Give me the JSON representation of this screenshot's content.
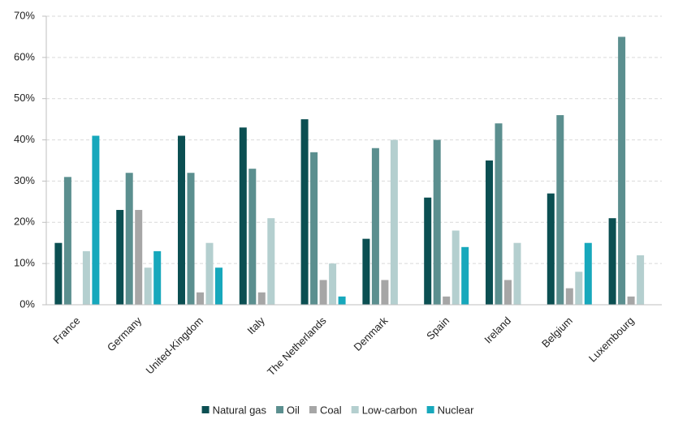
{
  "chart_data": {
    "type": "bar",
    "categories": [
      "France",
      "Germany",
      "United-Kingdom",
      "Italy",
      "The Netherlands",
      "Denmark",
      "Spain",
      "Ireland",
      "Belgium",
      "Luxembourg"
    ],
    "series": [
      {
        "name": "Natural gas",
        "color": "#0b4f52",
        "values": [
          15,
          23,
          41,
          43,
          45,
          16,
          26,
          35,
          27,
          21
        ]
      },
      {
        "name": "Oil",
        "color": "#5b8f8f",
        "values": [
          31,
          32,
          32,
          33,
          37,
          38,
          40,
          44,
          46,
          65
        ]
      },
      {
        "name": "Coal",
        "color": "#a6a6a6",
        "values": [
          0,
          23,
          3,
          3,
          6,
          6,
          2,
          6,
          4,
          2
        ]
      },
      {
        "name": "Low-carbon",
        "color": "#b4cfcf",
        "values": [
          13,
          9,
          15,
          21,
          10,
          40,
          18,
          15,
          8,
          12
        ]
      },
      {
        "name": "Nuclear",
        "color": "#17a8bc",
        "values": [
          41,
          13,
          9,
          0,
          2,
          0,
          14,
          0,
          15,
          0
        ]
      }
    ],
    "ylim": [
      0,
      70
    ],
    "yticks": [
      {
        "value": 0,
        "label": "0%"
      },
      {
        "value": 10,
        "label": "10%"
      },
      {
        "value": 20,
        "label": "20%"
      },
      {
        "value": 30,
        "label": "30%"
      },
      {
        "value": 40,
        "label": "40%"
      },
      {
        "value": 50,
        "label": "50%"
      },
      {
        "value": 60,
        "label": "60%"
      },
      {
        "value": 70,
        "label": "70%"
      }
    ],
    "grid": true,
    "legend": "bottom"
  }
}
